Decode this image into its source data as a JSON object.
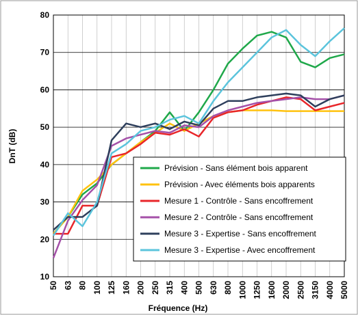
{
  "chart_data": {
    "type": "line",
    "xlabel": "Fréquence (Hz)",
    "ylabel": "DnT (dB)",
    "categories": [
      "50",
      "63",
      "80",
      "100",
      "125",
      "160",
      "200",
      "250",
      "315",
      "400",
      "500",
      "630",
      "800",
      "1000",
      "1250",
      "1600",
      "2000",
      "2500",
      "3150",
      "4000",
      "5000"
    ],
    "ylim": [
      10,
      80
    ],
    "yticks": [
      10,
      20,
      30,
      40,
      50,
      60,
      70,
      80
    ],
    "grid": true,
    "series": [
      {
        "name": "Prévision - Sans élément bois apparent",
        "color": "#1fa84a",
        "values": [
          21.5,
          26,
          32,
          35,
          40,
          43,
          46,
          49,
          54,
          49,
          54,
          60,
          67,
          71,
          74.5,
          75.5,
          74,
          67.5,
          66,
          68.5,
          69.5
        ]
      },
      {
        "name": "Prévision - Avec éléments bois apparents",
        "color": "#ffc20e",
        "values": [
          21.5,
          26,
          33,
          36,
          40,
          43,
          46,
          48.5,
          51,
          49,
          51,
          53,
          54,
          54.5,
          54.5,
          54.5,
          54.3,
          54.3,
          54.3,
          54.3,
          54.3
        ]
      },
      {
        "name": "Mesure 1 - Contrôle - Sans encoffrement",
        "color": "#e8262a",
        "values": [
          21.5,
          21.5,
          29,
          29,
          42,
          43,
          45.5,
          48.5,
          48,
          49.5,
          47.5,
          52.5,
          54,
          54.5,
          56,
          57,
          58,
          57.5,
          54.5,
          55.5,
          56.5
        ]
      },
      {
        "name": "Mesure 2 - Contrôle - Sans encoffrement",
        "color": "#a450a8",
        "values": [
          15,
          25,
          30.5,
          34.5,
          45,
          47,
          48,
          49,
          48.5,
          50.5,
          50,
          53,
          54.5,
          55.5,
          56.5,
          57,
          57.5,
          58,
          57.5,
          57.5,
          58.5
        ]
      },
      {
        "name": "Mesure 3 - Expertise - Sans encoffrement",
        "color": "#2e3f5c",
        "values": [
          22.5,
          26,
          26,
          29,
          46.5,
          51,
          50,
          51,
          49.5,
          51.5,
          50.5,
          55,
          57,
          57,
          58,
          58.5,
          59,
          58.5,
          55.5,
          57.5,
          58.5
        ]
      },
      {
        "name": "Mesure 3 - Expertise - Avec encoffrement",
        "color": "#5bc4dc",
        "values": [
          21,
          27,
          23.5,
          30,
          43,
          45.5,
          49,
          50,
          52,
          53,
          51,
          57,
          62,
          66,
          70,
          74,
          76,
          72,
          69,
          73,
          76.5
        ]
      }
    ]
  }
}
